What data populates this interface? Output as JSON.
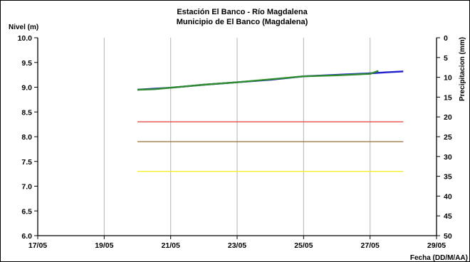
{
  "chart_data": {
    "type": "line",
    "title": "Estación El Banco - Río Magdalena",
    "subtitle": "Municipio de El Banco (Magdalena)",
    "ylabel": "Nivel (m)",
    "y2label": "Precipitacion (mm)",
    "xlabel": "Fecha (DD/M/AA)",
    "x_ticks": [
      "17/05",
      "19/05",
      "21/05",
      "23/05",
      "25/05",
      "27/05",
      "29/05"
    ],
    "xlim": [
      "17/05",
      "29/05"
    ],
    "y_ticks": [
      "6.0",
      "6.5",
      "7.0",
      "7.5",
      "8.0",
      "8.5",
      "9.0",
      "9.5",
      "10.0"
    ],
    "ylim": [
      6.0,
      10.0
    ],
    "y2_ticks": [
      "0",
      "5",
      "10",
      "15",
      "20",
      "25",
      "30",
      "35",
      "40",
      "45",
      "50"
    ],
    "y2lim": [
      0,
      50
    ],
    "y2_inverted": true,
    "grid": "vertical",
    "series": [
      {
        "color": "#1f1fcc",
        "x": [
          "20/05 00:00",
          "21/05 00:00",
          "22/05 00:00",
          "23/05 00:00",
          "24/05 00:00",
          "25/05 00:00",
          "26/05 00:00",
          "27/05 00:00",
          "27/05 12:00",
          "28/05 00:00"
        ],
        "values": [
          8.95,
          8.99,
          9.05,
          9.1,
          9.15,
          9.22,
          9.25,
          9.28,
          9.3,
          9.32
        ]
      },
      {
        "color": "#2e8b2e",
        "x": [
          "20/05 00:00",
          "20/05 12:00",
          "21/05 00:00",
          "22/05 00:00",
          "23/05 00:00",
          "24/05 00:00",
          "25/05 00:00",
          "26/05 00:00",
          "27/05 00:00",
          "27/05 06:00"
        ],
        "values": [
          8.95,
          8.96,
          8.99,
          9.05,
          9.1,
          9.16,
          9.22,
          9.24,
          9.27,
          9.33
        ]
      },
      {
        "color": "#e84b4b",
        "x": [
          "20/05 00:00",
          "28/05 00:00"
        ],
        "values": [
          8.3,
          8.3
        ]
      },
      {
        "color": "#9e7a44",
        "x": [
          "20/05 00:00",
          "28/05 00:00"
        ],
        "values": [
          7.9,
          7.9
        ]
      },
      {
        "color": "#f2ef2c",
        "x": [
          "20/05 00:00",
          "28/05 00:00"
        ],
        "values": [
          7.3,
          7.3
        ]
      }
    ]
  }
}
